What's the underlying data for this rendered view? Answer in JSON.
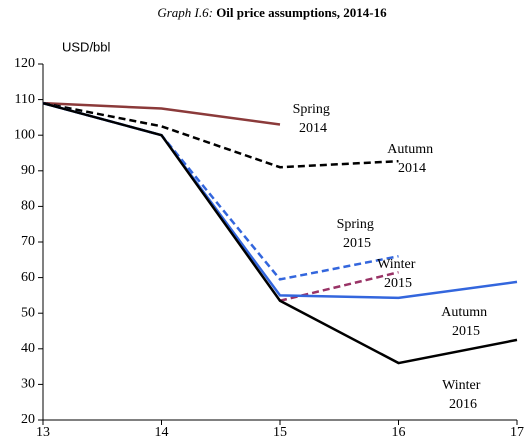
{
  "chart_data": {
    "type": "line",
    "title_label": "Graph I.6:",
    "title": "Oil price assumptions, 2014-16",
    "y_label": "USD/bbl",
    "xlim": [
      13,
      17
    ],
    "xticks": [
      13,
      14,
      15,
      16,
      17
    ],
    "ylim": [
      20,
      120
    ],
    "yticks": [
      20,
      30,
      40,
      50,
      60,
      70,
      80,
      90,
      100,
      110,
      120
    ],
    "series": [
      {
        "name": "Spring 2014",
        "color": "#8b3a3a",
        "dash": false,
        "x": [
          13,
          14,
          15
        ],
        "values": [
          109,
          107.5,
          103
        ]
      },
      {
        "name": "Autumn 2014",
        "color": "#000000",
        "dash": true,
        "x": [
          13,
          14,
          15,
          16
        ],
        "values": [
          109,
          102.5,
          91,
          92.7
        ]
      },
      {
        "name": "Spring 2015",
        "color": "#3366dd",
        "dash": true,
        "x": [
          13,
          14,
          15,
          16
        ],
        "values": [
          109,
          100,
          59.5,
          66
        ]
      },
      {
        "name": "Winter 2015",
        "color": "#993366",
        "dash": true,
        "x": [
          15,
          16
        ],
        "values": [
          53.5,
          61.5
        ]
      },
      {
        "name": "Autumn 2015",
        "color": "#3366dd",
        "dash": false,
        "x": [
          13,
          14,
          15,
          16,
          17
        ],
        "values": [
          109,
          100,
          55,
          54.3,
          58.8
        ]
      },
      {
        "name": "Winter 2016",
        "color": "#000000",
        "dash": false,
        "x": [
          13,
          14,
          15,
          16,
          17
        ],
        "values": [
          109,
          100,
          53.5,
          36,
          42.5
        ]
      }
    ]
  }
}
